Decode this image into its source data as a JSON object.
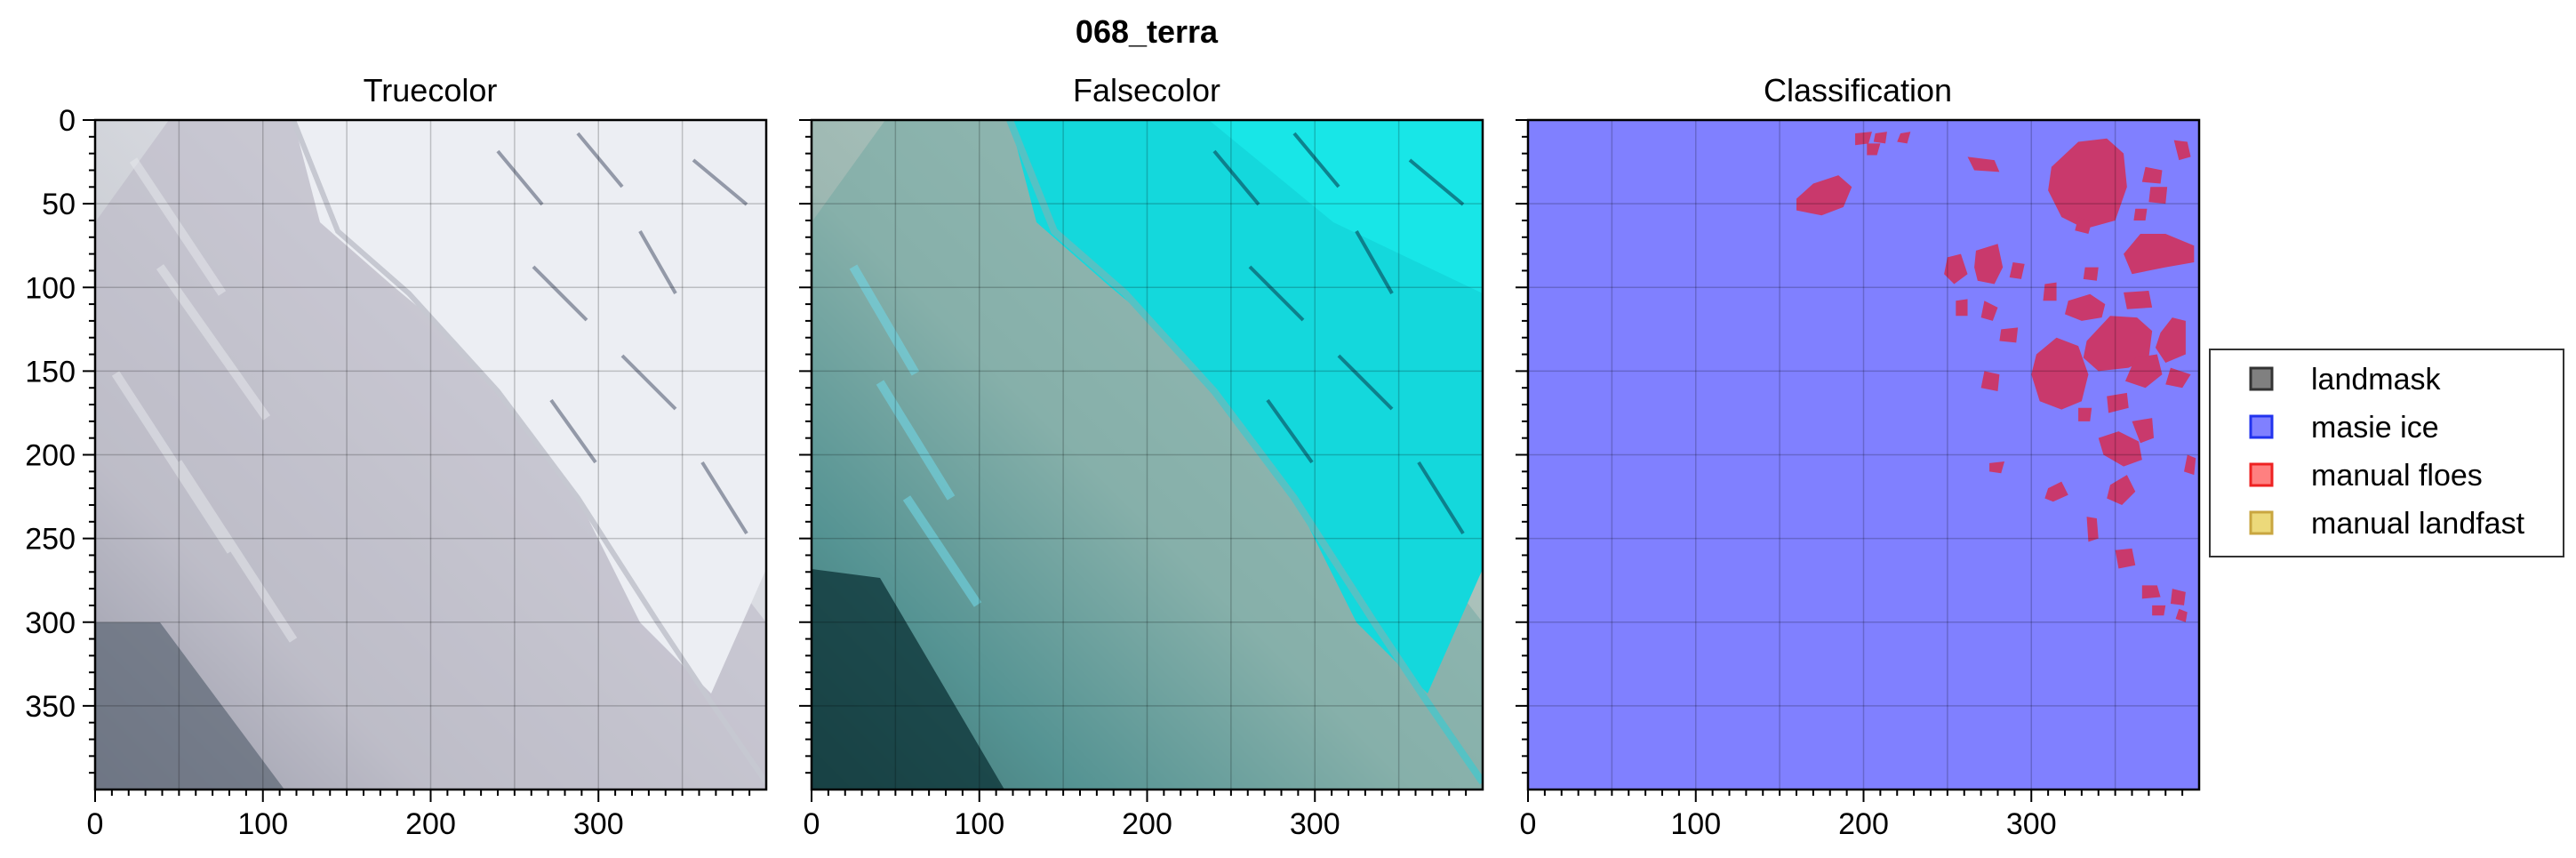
{
  "figure": {
    "title": "068_terra"
  },
  "chart_data": [
    {
      "type": "heatmap",
      "title": "Truecolor",
      "content": "truecolor satellite image",
      "xlim": [
        0,
        400
      ],
      "ylim": [
        400,
        0
      ],
      "xticks": [
        "0",
        "100",
        "200",
        "300"
      ],
      "yticks": [
        "0",
        "50",
        "100",
        "150",
        "200",
        "250",
        "300",
        "350"
      ],
      "grid": true
    },
    {
      "type": "heatmap",
      "title": "Falsecolor",
      "content": "falsecolor satellite image",
      "xlim": [
        0,
        400
      ],
      "ylim": [
        400,
        0
      ],
      "xticks": [
        "0",
        "100",
        "200",
        "300"
      ],
      "grid": true
    },
    {
      "type": "heatmap",
      "title": "Classification",
      "xlim": [
        0,
        400
      ],
      "ylim": [
        400,
        0
      ],
      "xticks": [
        "0",
        "100",
        "200",
        "300"
      ],
      "grid": true,
      "background_class": "masie ice",
      "floes_class": "manual floes",
      "floes": [
        [
          [
            160,
            47
          ],
          [
            170,
            38
          ],
          [
            185,
            33
          ],
          [
            193,
            40
          ],
          [
            188,
            52
          ],
          [
            175,
            57
          ],
          [
            160,
            54
          ]
        ],
        [
          [
            195,
            8
          ],
          [
            205,
            7
          ],
          [
            203,
            14
          ],
          [
            195,
            15
          ]
        ],
        [
          [
            207,
            8
          ],
          [
            214,
            7
          ],
          [
            213,
            14
          ],
          [
            206,
            13
          ]
        ],
        [
          [
            202,
            14
          ],
          [
            210,
            14
          ],
          [
            208,
            21
          ],
          [
            202,
            21
          ]
        ],
        [
          [
            222,
            8
          ],
          [
            228,
            7
          ],
          [
            226,
            14
          ],
          [
            220,
            13
          ]
        ],
        [
          [
            262,
            22
          ],
          [
            278,
            24
          ],
          [
            281,
            31
          ],
          [
            266,
            30
          ]
        ],
        [
          [
            312,
            28
          ],
          [
            328,
            13
          ],
          [
            345,
            11
          ],
          [
            355,
            20
          ],
          [
            357,
            40
          ],
          [
            350,
            60
          ],
          [
            332,
            65
          ],
          [
            318,
            58
          ],
          [
            310,
            42
          ]
        ],
        [
          [
            385,
            12
          ],
          [
            393,
            13
          ],
          [
            395,
            22
          ],
          [
            388,
            24
          ]
        ],
        [
          [
            368,
            28
          ],
          [
            378,
            30
          ],
          [
            377,
            38
          ],
          [
            366,
            37
          ]
        ],
        [
          [
            362,
            53
          ],
          [
            369,
            53
          ],
          [
            368,
            60
          ],
          [
            361,
            60
          ]
        ],
        [
          [
            371,
            40
          ],
          [
            381,
            40
          ],
          [
            380,
            50
          ],
          [
            370,
            49
          ]
        ],
        [
          [
            328,
            58
          ],
          [
            336,
            61
          ],
          [
            334,
            68
          ],
          [
            326,
            66
          ]
        ],
        [
          [
            355,
            80
          ],
          [
            365,
            68
          ],
          [
            380,
            68
          ],
          [
            397,
            75
          ],
          [
            397,
            85
          ],
          [
            380,
            88
          ],
          [
            360,
            92
          ]
        ],
        [
          [
            250,
            82
          ],
          [
            258,
            80
          ],
          [
            262,
            92
          ],
          [
            254,
            98
          ],
          [
            248,
            92
          ]
        ],
        [
          [
            267,
            78
          ],
          [
            280,
            74
          ],
          [
            283,
            88
          ],
          [
            278,
            98
          ],
          [
            268,
            96
          ],
          [
            266,
            88
          ]
        ],
        [
          [
            289,
            85
          ],
          [
            296,
            86
          ],
          [
            294,
            95
          ],
          [
            287,
            94
          ]
        ],
        [
          [
            332,
            88
          ],
          [
            340,
            88
          ],
          [
            339,
            96
          ],
          [
            331,
            95
          ]
        ],
        [
          [
            308,
            98
          ],
          [
            315,
            97
          ],
          [
            315,
            108
          ],
          [
            307,
            108
          ]
        ],
        [
          [
            355,
            103
          ],
          [
            370,
            102
          ],
          [
            372,
            112
          ],
          [
            357,
            113
          ]
        ],
        [
          [
            322,
            108
          ],
          [
            335,
            104
          ],
          [
            344,
            110
          ],
          [
            342,
            118
          ],
          [
            330,
            120
          ],
          [
            320,
            116
          ]
        ],
        [
          [
            255,
            108
          ],
          [
            262,
            107
          ],
          [
            262,
            117
          ],
          [
            255,
            117
          ]
        ],
        [
          [
            272,
            108
          ],
          [
            280,
            112
          ],
          [
            277,
            120
          ],
          [
            270,
            118
          ]
        ],
        [
          [
            333,
            132
          ],
          [
            347,
            117
          ],
          [
            363,
            118
          ],
          [
            372,
            126
          ],
          [
            370,
            142
          ],
          [
            358,
            148
          ],
          [
            340,
            150
          ],
          [
            331,
            142
          ]
        ],
        [
          [
            377,
            127
          ],
          [
            384,
            118
          ],
          [
            392,
            120
          ],
          [
            392,
            140
          ],
          [
            380,
            145
          ],
          [
            374,
            136
          ]
        ],
        [
          [
            282,
            125
          ],
          [
            292,
            124
          ],
          [
            291,
            133
          ],
          [
            281,
            132
          ]
        ],
        [
          [
            303,
            140
          ],
          [
            315,
            130
          ],
          [
            328,
            135
          ],
          [
            334,
            152
          ],
          [
            330,
            168
          ],
          [
            318,
            173
          ],
          [
            305,
            168
          ],
          [
            300,
            152
          ]
        ],
        [
          [
            362,
            142
          ],
          [
            375,
            140
          ],
          [
            378,
            152
          ],
          [
            368,
            160
          ],
          [
            356,
            156
          ]
        ],
        [
          [
            383,
            148
          ],
          [
            395,
            152
          ],
          [
            390,
            160
          ],
          [
            380,
            158
          ]
        ],
        [
          [
            272,
            150
          ],
          [
            281,
            152
          ],
          [
            280,
            162
          ],
          [
            270,
            160
          ]
        ],
        [
          [
            345,
            165
          ],
          [
            357,
            163
          ],
          [
            358,
            172
          ],
          [
            346,
            175
          ]
        ],
        [
          [
            328,
            172
          ],
          [
            336,
            172
          ],
          [
            335,
            180
          ],
          [
            328,
            180
          ]
        ],
        [
          [
            360,
            180
          ],
          [
            372,
            178
          ],
          [
            373,
            190
          ],
          [
            365,
            193
          ]
        ],
        [
          [
            340,
            190
          ],
          [
            352,
            186
          ],
          [
            364,
            192
          ],
          [
            366,
            203
          ],
          [
            355,
            207
          ],
          [
            343,
            200
          ]
        ],
        [
          [
            393,
            200
          ],
          [
            398,
            202
          ],
          [
            397,
            212
          ],
          [
            391,
            210
          ]
        ],
        [
          [
            275,
            205
          ],
          [
            284,
            204
          ],
          [
            282,
            211
          ],
          [
            275,
            210
          ]
        ],
        [
          [
            310,
            220
          ],
          [
            318,
            216
          ],
          [
            322,
            224
          ],
          [
            313,
            228
          ],
          [
            308,
            226
          ]
        ],
        [
          [
            347,
            218
          ],
          [
            357,
            212
          ],
          [
            362,
            222
          ],
          [
            354,
            230
          ],
          [
            345,
            226
          ]
        ],
        [
          [
            333,
            237
          ],
          [
            339,
            238
          ],
          [
            340,
            250
          ],
          [
            334,
            252
          ]
        ],
        [
          [
            350,
            257
          ],
          [
            360,
            256
          ],
          [
            362,
            266
          ],
          [
            352,
            268
          ]
        ],
        [
          [
            366,
            278
          ],
          [
            375,
            278
          ],
          [
            377,
            285
          ],
          [
            366,
            286
          ]
        ],
        [
          [
            384,
            280
          ],
          [
            392,
            282
          ],
          [
            391,
            290
          ],
          [
            383,
            289
          ]
        ],
        [
          [
            372,
            290
          ],
          [
            380,
            290
          ],
          [
            379,
            296
          ],
          [
            372,
            296
          ]
        ],
        [
          [
            388,
            292
          ],
          [
            393,
            294
          ],
          [
            392,
            300
          ],
          [
            386,
            298
          ]
        ]
      ]
    }
  ],
  "legend": {
    "placement": "right",
    "items": [
      {
        "label": "landmask",
        "color": "#808080",
        "edge": "#333333"
      },
      {
        "label": "masie ice",
        "color": "#8080ff",
        "edge": "#2233ee"
      },
      {
        "label": "manual floes",
        "color": "#ff8080",
        "edge": "#ee2222"
      },
      {
        "label": "manual landfast",
        "color": "#ecd97a",
        "edge": "#c9a640"
      }
    ]
  },
  "colors": {
    "floe": "#c9396c",
    "masie_ice": "#8080ff",
    "grid": "rgba(0,0,0,0.20)"
  }
}
